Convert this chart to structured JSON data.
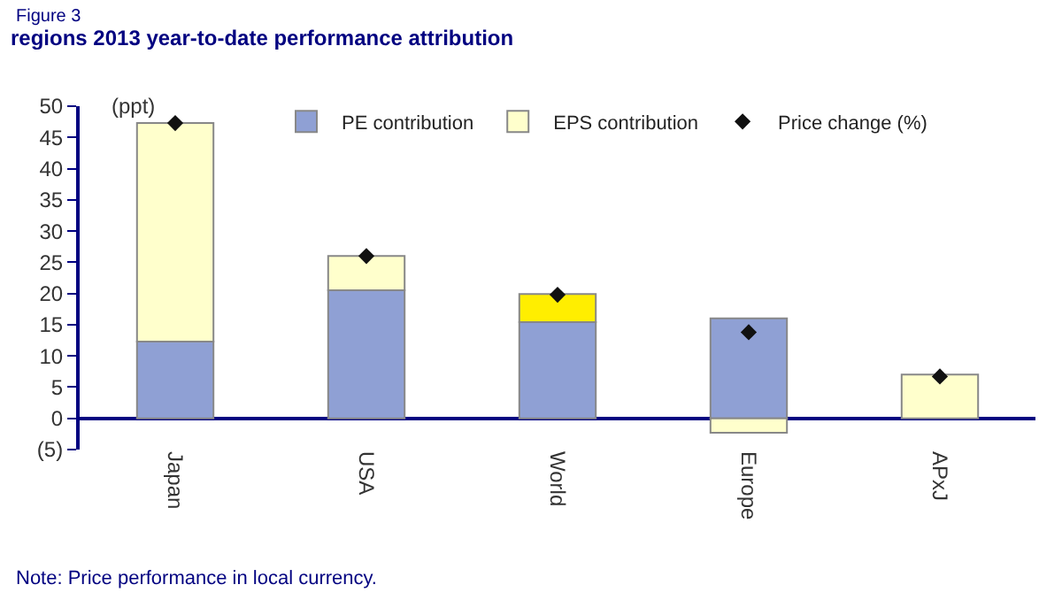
{
  "chart_data": {
    "type": "bar",
    "stacked": true,
    "title": "regions 2013 year-to-date performance attribution",
    "categories": [
      "Japan",
      "USA",
      "World",
      "Europe",
      "APxJ"
    ],
    "series": [
      {
        "name": "PE contribution",
        "color": "#8fa0d4",
        "values": [
          12.3,
          20.5,
          15.4,
          16,
          null
        ]
      },
      {
        "name": "EPS contribution",
        "color": "#ffffcc",
        "colors": [
          "#ffffcc",
          "#ffffcc",
          "#ffee00",
          "#ffffcc",
          "#ffffcc"
        ],
        "values": [
          35,
          5.5,
          4.5,
          -2.3,
          7
        ]
      },
      {
        "name": "Price change (%)",
        "type": "scatter",
        "marker": "diamond",
        "color": "#111111",
        "values": [
          47.3,
          26,
          19.8,
          13.8,
          6.7
        ]
      }
    ],
    "ylim": [
      -5,
      50
    ],
    "yticks": [
      {
        "value": -5,
        "label": "(5)"
      },
      0,
      5,
      10,
      15,
      20,
      25,
      30,
      35,
      40,
      45,
      50
    ],
    "legend": "top",
    "annotations": [
      "Figure 3",
      "(ppt)",
      "Note: Price performance in local currency."
    ]
  }
}
